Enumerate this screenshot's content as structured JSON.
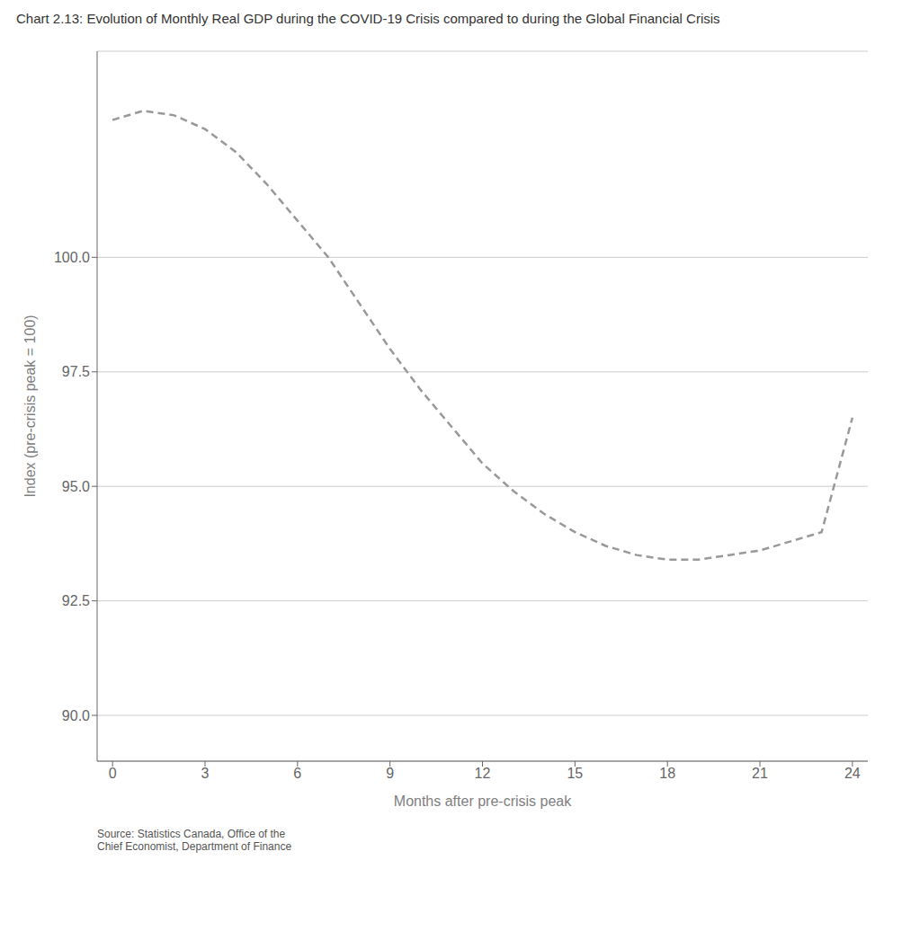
{
  "chart_data": {
    "type": "line",
    "title": "Chart 2.13: Evolution of Monthly Real GDP during the COVID-19 Crisis compared to during the Global Financial Crisis",
    "xlabel": "Months after pre-crisis peak",
    "ylabel": "Index (pre-crisis peak = 100)",
    "annotation": "Source: Statistics Canada, Office of the\nChief Economist, Department of Finance",
    "x": [
      0,
      1,
      2,
      3,
      4,
      5,
      6,
      7,
      8,
      9,
      10,
      11,
      12,
      13,
      14,
      15,
      16,
      17,
      18,
      19,
      20,
      21,
      22,
      23,
      24
    ],
    "values": [
      103.0,
      103.2,
      103.1,
      102.8,
      102.3,
      101.6,
      100.8,
      100.0,
      99.0,
      98.0,
      97.1,
      96.3,
      95.5,
      94.9,
      94.4,
      94.0,
      93.7,
      93.5,
      93.4,
      93.4,
      93.5,
      93.6,
      93.8,
      94.0,
      96.5
    ],
    "color": "#999999",
    "line_style": "dashed",
    "xlim": [
      -0.5,
      24.5
    ],
    "xticks": [
      0,
      3,
      6,
      9,
      12,
      15,
      18,
      21,
      24
    ],
    "ylim": [
      89.0,
      104.5
    ],
    "yticks": [
      {
        "value": 90,
        "label": "90.0"
      },
      92.5,
      {
        "value": 95,
        "label": "95.0"
      },
      97.5,
      {
        "value": 100,
        "label": "100.0"
      }
    ],
    "grid": "y"
  }
}
